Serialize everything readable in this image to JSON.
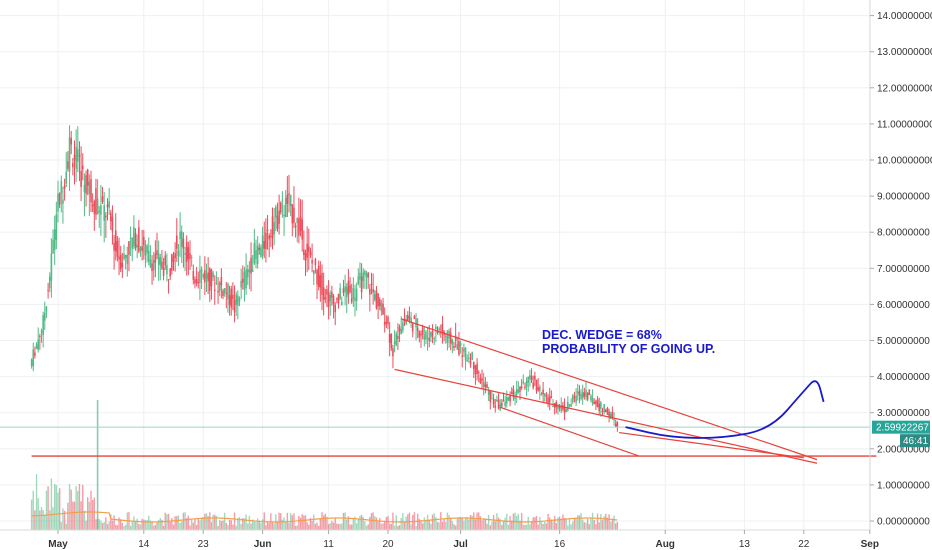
{
  "chart_data": {
    "type": "candlestick",
    "title": "",
    "y_axis": {
      "side": "right",
      "range": [
        -0.2,
        14.4
      ],
      "ticks": [
        "0.00000000",
        "1.00000000",
        "2.00000000",
        "3.00000000",
        "4.00000000",
        "5.00000000",
        "6.00000000",
        "7.00000000",
        "8.00000000",
        "9.00000000",
        "10.00000000",
        "11.00000000",
        "12.00000000",
        "13.00000000",
        "14.00000000"
      ],
      "tick_values": [
        0,
        1,
        2,
        3,
        4,
        5,
        6,
        7,
        8,
        9,
        10,
        11,
        12,
        13,
        14
      ]
    },
    "x_axis": {
      "labels": [
        {
          "text": "May",
          "day": 0,
          "bold": true
        },
        {
          "text": "14",
          "day": 13,
          "bold": false
        },
        {
          "text": "23",
          "day": 22,
          "bold": false
        },
        {
          "text": "Jun",
          "day": 31,
          "bold": true
        },
        {
          "text": "11",
          "day": 41,
          "bold": false
        },
        {
          "text": "20",
          "day": 50,
          "bold": false
        },
        {
          "text": "Jul",
          "day": 61,
          "bold": true
        },
        {
          "text": "16",
          "day": 76,
          "bold": false
        },
        {
          "text": "Aug",
          "day": 92,
          "bold": true
        },
        {
          "text": "13",
          "day": 104,
          "bold": false
        },
        {
          "text": "22",
          "day": 113,
          "bold": false
        },
        {
          "text": "Sep",
          "day": 123,
          "bold": true
        }
      ]
    },
    "price_series": {
      "name": "",
      "close_points": [
        [
          -4,
          4.3
        ],
        [
          -3,
          4.9
        ],
        [
          -2,
          5.5
        ],
        [
          -1,
          6.8
        ],
        [
          0,
          8.6
        ],
        [
          1,
          9.3
        ],
        [
          2,
          10.4
        ],
        [
          3,
          10.0
        ],
        [
          4,
          9.5
        ],
        [
          5,
          9.2
        ],
        [
          6,
          8.8
        ],
        [
          7,
          8.6
        ],
        [
          8,
          8.5
        ],
        [
          9,
          7.5
        ],
        [
          10,
          7.2
        ],
        [
          11,
          7.6
        ],
        [
          12,
          7.9
        ],
        [
          13,
          7.6
        ],
        [
          14,
          7.3
        ],
        [
          15,
          7.2
        ],
        [
          16,
          7.1
        ],
        [
          17,
          6.9
        ],
        [
          18,
          7.6
        ],
        [
          19,
          7.9
        ],
        [
          20,
          7.2
        ],
        [
          21,
          6.8
        ],
        [
          22,
          6.9
        ],
        [
          23,
          6.7
        ],
        [
          24,
          6.6
        ],
        [
          25,
          6.5
        ],
        [
          26,
          6.3
        ],
        [
          27,
          5.9
        ],
        [
          28,
          6.5
        ],
        [
          29,
          6.9
        ],
        [
          30,
          7.4
        ],
        [
          31,
          7.5
        ],
        [
          32,
          7.9
        ],
        [
          33,
          8.3
        ],
        [
          34,
          8.6
        ],
        [
          35,
          8.8
        ],
        [
          36,
          8.5
        ],
        [
          37,
          8.0
        ],
        [
          38,
          7.4
        ],
        [
          39,
          7.0
        ],
        [
          40,
          6.6
        ],
        [
          41,
          6.2
        ],
        [
          42,
          6.0
        ],
        [
          43,
          6.2
        ],
        [
          44,
          6.4
        ],
        [
          45,
          6.3
        ],
        [
          46,
          6.6
        ],
        [
          47,
          6.7
        ],
        [
          48,
          6.3
        ],
        [
          49,
          5.9
        ],
        [
          50,
          5.6
        ],
        [
          51,
          4.7
        ],
        [
          52,
          5.4
        ],
        [
          53,
          5.6
        ],
        [
          54,
          5.5
        ],
        [
          55,
          5.3
        ],
        [
          56,
          5.1
        ],
        [
          57,
          5.2
        ],
        [
          58,
          5.3
        ],
        [
          59,
          5.1
        ],
        [
          60,
          5.0
        ],
        [
          61,
          4.8
        ],
        [
          62,
          4.6
        ],
        [
          63,
          4.5
        ],
        [
          64,
          4.0
        ],
        [
          65,
          3.7
        ],
        [
          66,
          3.3
        ],
        [
          67,
          3.2
        ],
        [
          68,
          3.3
        ],
        [
          69,
          3.5
        ],
        [
          70,
          3.6
        ],
        [
          71,
          3.8
        ],
        [
          72,
          3.9
        ],
        [
          73,
          3.7
        ],
        [
          74,
          3.4
        ],
        [
          75,
          3.3
        ],
        [
          76,
          3.2
        ],
        [
          77,
          3.1
        ],
        [
          78,
          3.3
        ],
        [
          79,
          3.5
        ],
        [
          80,
          3.6
        ],
        [
          81,
          3.4
        ],
        [
          82,
          3.2
        ],
        [
          83,
          3.1
        ],
        [
          84,
          2.9
        ],
        [
          85,
          2.6
        ]
      ],
      "volume_spike": {
        "day": 6,
        "value_axis": 3.35
      },
      "last_price_label": "2.59922267",
      "countdown_label": "46:41",
      "last_price_value": 2.59922267
    },
    "drawings": {
      "wedge_upper": [
        [
          52,
          5.6
        ],
        [
          115,
          1.7
        ]
      ],
      "wedge_lower": [
        [
          51,
          4.2
        ],
        [
          115,
          1.6
        ]
      ],
      "channel_upper_inner": [
        [
          67,
          3.15
        ],
        [
          88,
          1.8
        ]
      ],
      "support_line": [
        [
          -4,
          1.8
        ],
        [
          124,
          1.8
        ]
      ],
      "lower_diag": [
        [
          85,
          2.45
        ],
        [
          113,
          1.75
        ]
      ],
      "projection_curve": [
        [
          86,
          2.6
        ],
        [
          93,
          2.3
        ],
        [
          101,
          2.3
        ],
        [
          108,
          2.55
        ],
        [
          113,
          3.6
        ],
        [
          115,
          4.0
        ],
        [
          116,
          3.3
        ]
      ],
      "annotation_text": [
        "DEC. WEDGE = 68%",
        "PROBABILITY OF GOING UP."
      ]
    },
    "colors": {
      "up": "#53b987",
      "down": "#eb4d5c",
      "grid": "#eef0f3",
      "annotation": "#1a1acc",
      "drawing": "#e8423b",
      "price_tag": "#26a69a",
      "countdown_tag": "#2c8c84",
      "volume_ma": "#f0a04b"
    },
    "grid": true
  }
}
